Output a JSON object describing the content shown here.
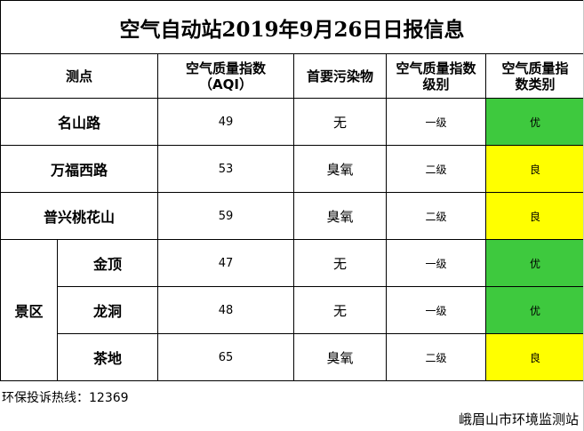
{
  "title": "空气自动站2019年9月26日日报信息",
  "headers": {
    "station": "测点",
    "aqi_line1": "空气质量指数",
    "aqi_line2": "（AQI）",
    "pollutant": "首要污染物",
    "level_line1": "空气质量指数",
    "level_line2": "级别",
    "category_line1": "空气质量指",
    "category_line2": "数类别"
  },
  "rows": [
    {
      "name": "名山路",
      "aqi": "49",
      "pollutant": "无",
      "level": "一级",
      "category": "优",
      "color": "#3ec93e"
    },
    {
      "name": "万福西路",
      "aqi": "53",
      "pollutant": "臭氧",
      "level": "二级",
      "category": "良",
      "color": "#ffff00"
    },
    {
      "name": "普兴桃花山",
      "aqi": "59",
      "pollutant": "臭氧",
      "level": "二级",
      "category": "良",
      "color": "#ffff00"
    }
  ],
  "scenic_group": "景区",
  "scenic_rows": [
    {
      "name": "金顶",
      "aqi": "47",
      "pollutant": "无",
      "level": "一级",
      "category": "优",
      "color": "#3ec93e"
    },
    {
      "name": "龙洞",
      "aqi": "48",
      "pollutant": "无",
      "level": "一级",
      "category": "优",
      "color": "#3ec93e"
    },
    {
      "name": "茶地",
      "aqi": "65",
      "pollutant": "臭氧",
      "level": "二级",
      "category": "良",
      "color": "#ffff00"
    }
  ],
  "hotline": "环保投诉热线：12369",
  "station_name": "峨眉山市环境监测站"
}
